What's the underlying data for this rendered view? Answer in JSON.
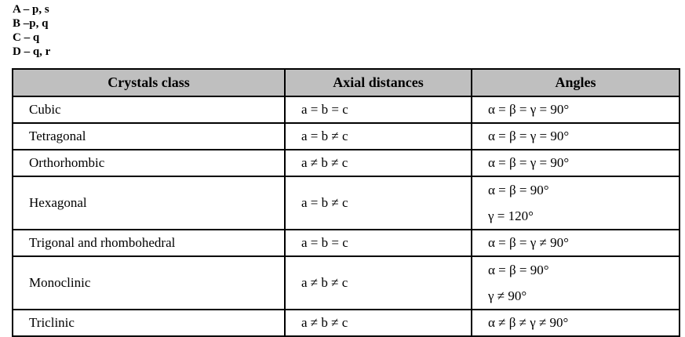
{
  "answers": [
    "A – p, s",
    "B –p, q",
    "C – q",
    "D – q, r"
  ],
  "table": {
    "headers": [
      "Crystals class",
      "Axial distances",
      "Angles"
    ],
    "rows": [
      {
        "cls": "Cubic",
        "axial": "a = b = c",
        "angles": [
          "α = β = γ = 90°"
        ]
      },
      {
        "cls": "Tetragonal",
        "axial": "a = b ≠ c",
        "angles": [
          "α = β = γ = 90°"
        ]
      },
      {
        "cls": "Orthorhombic",
        "axial": "a ≠ b ≠ c",
        "angles": [
          "α = β = γ = 90°"
        ]
      },
      {
        "cls": "Hexagonal",
        "axial": "a = b ≠ c",
        "angles": [
          "α = β = 90°",
          "γ = 120°"
        ]
      },
      {
        "cls": "Trigonal and rhombohedral",
        "axial": "a = b = c",
        "angles": [
          "α = β = γ ≠ 90°"
        ]
      },
      {
        "cls": "Monoclinic",
        "axial": "a ≠ b ≠ c",
        "angles": [
          "α = β = 90°",
          "γ ≠ 90°"
        ]
      },
      {
        "cls": "Triclinic",
        "axial": "a ≠ b ≠ c",
        "angles": [
          "α ≠ β ≠ γ ≠ 90°"
        ]
      }
    ]
  }
}
